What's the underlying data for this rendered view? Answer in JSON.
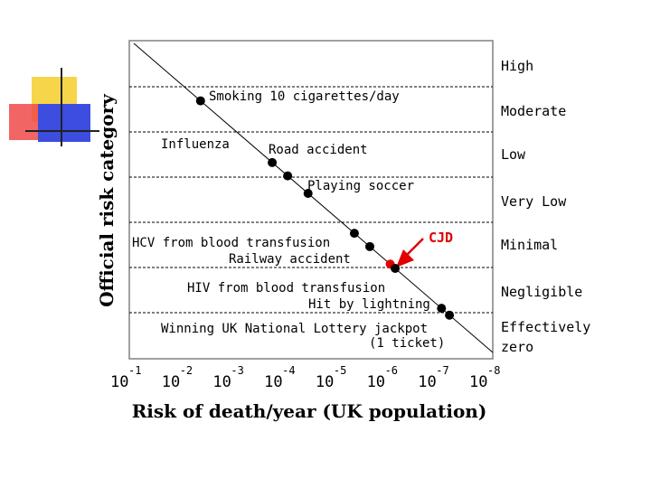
{
  "chart_data": {
    "type": "scatter",
    "title": "",
    "xlabel": "Risk of death/year (UK population)",
    "ylabel": "Official risk category",
    "x_scale": "log",
    "x_ticks": [
      {
        "base": "10",
        "exp": "-1"
      },
      {
        "base": "10",
        "exp": "-2"
      },
      {
        "base": "10",
        "exp": "-3"
      },
      {
        "base": "10",
        "exp": "-4"
      },
      {
        "base": "10",
        "exp": "-5"
      },
      {
        "base": "10",
        "exp": "-6"
      },
      {
        "base": "10",
        "exp": "-7"
      },
      {
        "base": "10",
        "exp": "-8"
      }
    ],
    "xlim": [
      0.1,
      1e-08
    ],
    "categories": [
      "High",
      "Moderate",
      "Low",
      "Very Low",
      "Minimal",
      "Negligible",
      "Effectively zero"
    ],
    "points": [
      {
        "label": "Smoking 10 cigarettes/day",
        "x": 0.005,
        "highlight": false
      },
      {
        "label": "Influenza",
        "x": 0.0002,
        "highlight": false
      },
      {
        "label": "Road accident",
        "x": 0.0001,
        "highlight": false
      },
      {
        "label": "Playing soccer",
        "x": 4e-05,
        "highlight": false
      },
      {
        "label": "HCV from blood transfusion",
        "x": 5e-06,
        "highlight": false
      },
      {
        "label": "Railway accident",
        "x": 2.5e-06,
        "highlight": false
      },
      {
        "label": "CJD",
        "x": 1e-06,
        "highlight": true
      },
      {
        "label": "HIV from blood transfusion",
        "x": 8e-07,
        "highlight": false
      },
      {
        "label": "Hit by lightning",
        "x": 1e-07,
        "highlight": false
      },
      {
        "label": "Winning UK National Lottery jackpot (1 ticket)",
        "x": 7e-08,
        "highlight": false
      }
    ],
    "colors": {
      "points": "#000000",
      "highlight": "#e00000",
      "frame": "#808080"
    },
    "grid": "dashed horizontal category boundaries",
    "trend_line": "diagonal"
  }
}
